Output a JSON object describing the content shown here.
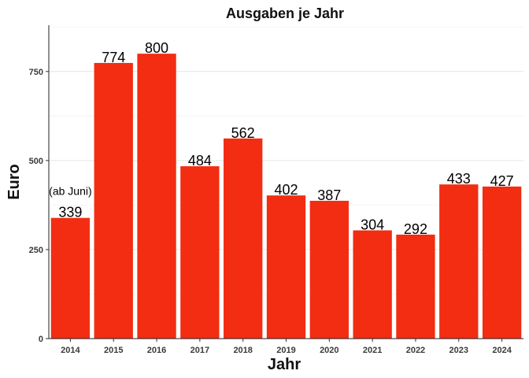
{
  "chart_data": {
    "type": "bar",
    "title": "Ausgaben je Jahr",
    "xlabel": "Jahr",
    "ylabel": "Euro",
    "categories": [
      "2014",
      "2015",
      "2016",
      "2017",
      "2018",
      "2019",
      "2020",
      "2021",
      "2022",
      "2023",
      "2024"
    ],
    "values": [
      339,
      774,
      800,
      484,
      562,
      402,
      387,
      304,
      292,
      433,
      427
    ],
    "data_labels": [
      "339",
      "774",
      "800",
      "484",
      "562",
      "402",
      "387",
      "304",
      "292",
      "433",
      "427"
    ],
    "ylim": [
      0,
      880
    ],
    "yticks": [
      0,
      250,
      500,
      750
    ],
    "ytick_labels": [
      "0",
      "250",
      "500",
      "750"
    ],
    "grid": true,
    "legend": "none",
    "bar_color": "#f22d12",
    "annotations": [
      {
        "category": "2014",
        "text": "(ab Juni)"
      }
    ]
  }
}
